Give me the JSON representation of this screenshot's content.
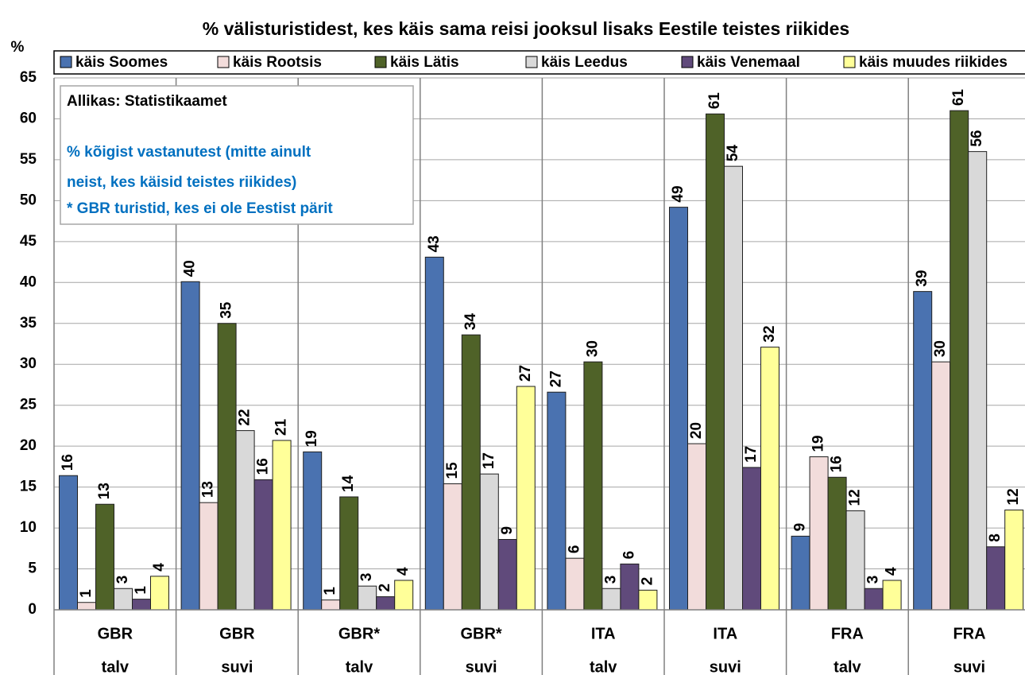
{
  "chart_data": {
    "type": "bar",
    "title": "% välisturistidest, kes käis sama reisi jooksul lisaks Eestile teistes riikides",
    "y_label": "%",
    "annotation": {
      "source": "Allikas: Statistikaamet",
      "notes": [
        "% kõigist vastanutest (mitte ainult",
        "neist, kes käisid teistes riikides)",
        "* GBR turistid, kes ei ole Eestist pärit"
      ]
    },
    "categories": [
      [
        "GBR",
        "talv"
      ],
      [
        "GBR",
        "suvi"
      ],
      [
        "GBR*",
        "talv"
      ],
      [
        "GBR*",
        "suvi"
      ],
      [
        "ITA",
        "talv"
      ],
      [
        "ITA",
        "suvi"
      ],
      [
        "FRA",
        "talv"
      ],
      [
        "FRA",
        "suvi"
      ]
    ],
    "series": [
      {
        "name": "käis Soomes",
        "color": "#4a72b0",
        "values": [
          16.4,
          40.1,
          19.3,
          43.1,
          26.6,
          49.2,
          9.0,
          38.9
        ],
        "value_labels": [
          "16",
          "40",
          "19",
          "43",
          "27",
          "49",
          "9",
          "39"
        ]
      },
      {
        "name": "käis Rootsis",
        "color": "#f2dcdb",
        "values": [
          0.9,
          13.1,
          1.2,
          15.4,
          6.3,
          20.3,
          18.7,
          30.3
        ],
        "value_labels": [
          "1",
          "13",
          "1",
          "15",
          "6",
          "20",
          "19",
          "30"
        ]
      },
      {
        "name": "käis Lätis",
        "color": "#4f6228",
        "values": [
          12.9,
          35.0,
          13.8,
          33.6,
          30.3,
          60.6,
          16.2,
          61.0
        ],
        "value_labels": [
          "13",
          "35",
          "14",
          "34",
          "30",
          "61",
          "16",
          "61"
        ]
      },
      {
        "name": "käis Leedus",
        "color": "#d9d9d9",
        "values": [
          2.6,
          21.9,
          2.9,
          16.6,
          2.6,
          54.2,
          12.1,
          56.0
        ],
        "value_labels": [
          "3",
          "22",
          "3",
          "17",
          "3",
          "54",
          "12",
          "56"
        ]
      },
      {
        "name": "käis Venemaal",
        "color": "#604a7b",
        "values": [
          1.3,
          15.9,
          1.6,
          8.6,
          5.6,
          17.4,
          2.6,
          7.7
        ],
        "value_labels": [
          "1",
          "16",
          "2",
          "9",
          "6",
          "17",
          "3",
          "8"
        ]
      },
      {
        "name": "käis muudes riikides",
        "color": "#ffff99",
        "values": [
          4.1,
          20.7,
          3.6,
          27.3,
          2.4,
          32.1,
          3.6,
          12.2
        ],
        "value_labels": [
          "4",
          "21",
          "4",
          "27",
          "2",
          "32",
          "4",
          "12"
        ]
      }
    ],
    "ylim": [
      0,
      65
    ],
    "yticks": [
      0,
      5,
      10,
      15,
      20,
      25,
      30,
      35,
      40,
      45,
      50,
      55,
      60,
      65
    ],
    "grid": true
  }
}
